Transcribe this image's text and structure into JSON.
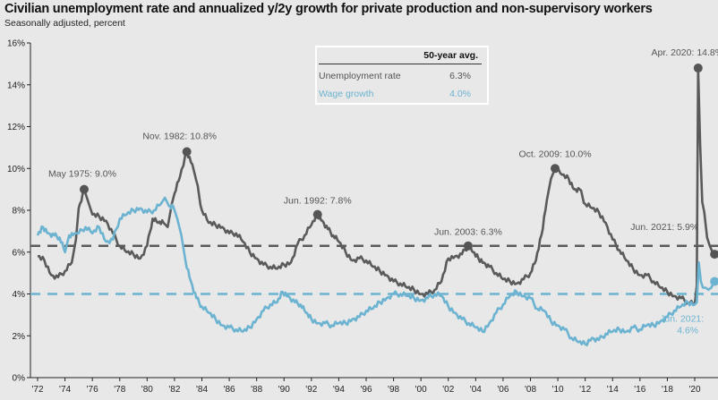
{
  "chart_data": {
    "type": "line",
    "title": "Civilian unemployment rate and annualized y/2y growth for private production and non-supervisory workers",
    "subtitle": "Seasonally adjusted, percent",
    "xlabel": "",
    "ylabel": "",
    "xlim": [
      1972,
      2021.5
    ],
    "ylim": [
      0,
      16
    ],
    "y_ticks": [
      0,
      2,
      4,
      6,
      8,
      10,
      12,
      14,
      16
    ],
    "y_tick_labels": [
      "0%",
      "2%",
      "4%",
      "6%",
      "8%",
      "10%",
      "12%",
      "14%",
      "16%"
    ],
    "x_ticks": [
      1972,
      1974,
      1976,
      1978,
      1980,
      1982,
      1984,
      1986,
      1988,
      1990,
      1992,
      1994,
      1996,
      1998,
      2000,
      2002,
      2004,
      2006,
      2008,
      2010,
      2012,
      2014,
      2016,
      2018,
      2020
    ],
    "x_tick_labels": [
      "'72",
      "'74",
      "'76",
      "'78",
      "'80",
      "'82",
      "'84",
      "'86",
      "'88",
      "'90",
      "'92",
      "'94",
      "'96",
      "'98",
      "'00",
      "'02",
      "'04",
      "'06",
      "'08",
      "'10",
      "'12",
      "'14",
      "'16",
      "'18",
      "'20"
    ],
    "grid": false,
    "series": [
      {
        "name": "Unemployment rate",
        "color": "#5a5a5a",
        "points": [
          [
            1972.0,
            5.8
          ],
          [
            1972.5,
            5.6
          ],
          [
            1973.0,
            4.9
          ],
          [
            1973.5,
            4.8
          ],
          [
            1974.0,
            5.1
          ],
          [
            1974.5,
            5.5
          ],
          [
            1974.8,
            6.6
          ],
          [
            1975.0,
            8.1
          ],
          [
            1975.4,
            9.0
          ],
          [
            1975.7,
            8.4
          ],
          [
            1976.0,
            7.8
          ],
          [
            1976.5,
            7.7
          ],
          [
            1977.0,
            7.5
          ],
          [
            1977.5,
            6.9
          ],
          [
            1978.0,
            6.3
          ],
          [
            1978.5,
            6.0
          ],
          [
            1979.0,
            5.9
          ],
          [
            1979.5,
            5.7
          ],
          [
            1980.0,
            6.3
          ],
          [
            1980.4,
            7.6
          ],
          [
            1980.8,
            7.4
          ],
          [
            1981.2,
            7.4
          ],
          [
            1981.5,
            7.2
          ],
          [
            1981.8,
            8.3
          ],
          [
            1982.0,
            8.8
          ],
          [
            1982.4,
            9.6
          ],
          [
            1982.9,
            10.8
          ],
          [
            1983.3,
            10.2
          ],
          [
            1983.6,
            9.4
          ],
          [
            1984.0,
            8.0
          ],
          [
            1984.5,
            7.4
          ],
          [
            1985.0,
            7.3
          ],
          [
            1985.5,
            7.2
          ],
          [
            1986.0,
            6.9
          ],
          [
            1986.5,
            6.9
          ],
          [
            1987.0,
            6.5
          ],
          [
            1987.5,
            6.0
          ],
          [
            1988.0,
            5.7
          ],
          [
            1988.5,
            5.4
          ],
          [
            1989.0,
            5.3
          ],
          [
            1989.5,
            5.2
          ],
          [
            1990.0,
            5.4
          ],
          [
            1990.5,
            5.5
          ],
          [
            1991.0,
            6.4
          ],
          [
            1991.5,
            6.8
          ],
          [
            1992.0,
            7.3
          ],
          [
            1992.45,
            7.8
          ],
          [
            1992.8,
            7.5
          ],
          [
            1993.2,
            7.1
          ],
          [
            1993.6,
            6.8
          ],
          [
            1994.0,
            6.5
          ],
          [
            1994.5,
            6.0
          ],
          [
            1995.0,
            5.6
          ],
          [
            1995.5,
            5.7
          ],
          [
            1996.0,
            5.6
          ],
          [
            1996.5,
            5.3
          ],
          [
            1997.0,
            5.1
          ],
          [
            1997.5,
            4.9
          ],
          [
            1998.0,
            4.6
          ],
          [
            1998.5,
            4.5
          ],
          [
            1999.0,
            4.3
          ],
          [
            1999.5,
            4.2
          ],
          [
            2000.0,
            4.0
          ],
          [
            2000.5,
            4.0
          ],
          [
            2001.0,
            4.2
          ],
          [
            2001.5,
            4.6
          ],
          [
            2002.0,
            5.7
          ],
          [
            2002.5,
            5.8
          ],
          [
            2003.0,
            5.9
          ],
          [
            2003.45,
            6.3
          ],
          [
            2003.8,
            6.0
          ],
          [
            2004.2,
            5.7
          ],
          [
            2004.6,
            5.5
          ],
          [
            2005.0,
            5.3
          ],
          [
            2005.5,
            5.0
          ],
          [
            2006.0,
            4.7
          ],
          [
            2006.5,
            4.6
          ],
          [
            2007.0,
            4.5
          ],
          [
            2007.5,
            4.7
          ],
          [
            2008.0,
            5.0
          ],
          [
            2008.4,
            5.6
          ],
          [
            2008.8,
            6.8
          ],
          [
            2009.2,
            8.5
          ],
          [
            2009.5,
            9.5
          ],
          [
            2009.8,
            10.0
          ],
          [
            2010.3,
            9.7
          ],
          [
            2010.8,
            9.5
          ],
          [
            2011.2,
            9.0
          ],
          [
            2011.6,
            9.0
          ],
          [
            2012.0,
            8.3
          ],
          [
            2012.5,
            8.1
          ],
          [
            2013.0,
            7.9
          ],
          [
            2013.5,
            7.4
          ],
          [
            2014.0,
            6.6
          ],
          [
            2014.5,
            6.1
          ],
          [
            2015.0,
            5.6
          ],
          [
            2015.5,
            5.2
          ],
          [
            2016.0,
            4.9
          ],
          [
            2016.5,
            4.9
          ],
          [
            2017.0,
            4.6
          ],
          [
            2017.5,
            4.3
          ],
          [
            2018.0,
            4.1
          ],
          [
            2018.5,
            3.9
          ],
          [
            2019.0,
            3.8
          ],
          [
            2019.5,
            3.6
          ],
          [
            2020.0,
            3.5
          ],
          [
            2020.15,
            4.4
          ],
          [
            2020.25,
            14.8
          ],
          [
            2020.4,
            11.1
          ],
          [
            2020.55,
            8.4
          ],
          [
            2020.7,
            7.9
          ],
          [
            2020.9,
            6.7
          ],
          [
            2021.1,
            6.3
          ],
          [
            2021.3,
            6.0
          ],
          [
            2021.45,
            5.9
          ]
        ]
      },
      {
        "name": "Wage growth",
        "color": "#6bb3d0",
        "points": [
          [
            1972.0,
            6.8
          ],
          [
            1972.4,
            7.2
          ],
          [
            1972.8,
            6.9
          ],
          [
            1973.2,
            6.8
          ],
          [
            1973.6,
            6.7
          ],
          [
            1974.0,
            6.0
          ],
          [
            1974.3,
            6.8
          ],
          [
            1974.7,
            6.9
          ],
          [
            1975.0,
            6.9
          ],
          [
            1975.5,
            7.2
          ],
          [
            1976.0,
            6.9
          ],
          [
            1976.5,
            7.2
          ],
          [
            1977.0,
            6.5
          ],
          [
            1977.5,
            6.6
          ],
          [
            1978.0,
            7.6
          ],
          [
            1978.5,
            7.8
          ],
          [
            1979.0,
            8.0
          ],
          [
            1979.5,
            8.1
          ],
          [
            1980.0,
            7.9
          ],
          [
            1980.5,
            8.0
          ],
          [
            1981.0,
            8.3
          ],
          [
            1981.3,
            8.6
          ],
          [
            1981.6,
            8.2
          ],
          [
            1981.9,
            8.2
          ],
          [
            1982.2,
            7.6
          ],
          [
            1982.5,
            6.8
          ],
          [
            1982.8,
            5.6
          ],
          [
            1983.2,
            4.6
          ],
          [
            1983.6,
            3.8
          ],
          [
            1984.0,
            3.4
          ],
          [
            1984.5,
            3.1
          ],
          [
            1985.0,
            2.8
          ],
          [
            1985.5,
            2.5
          ],
          [
            1986.0,
            2.4
          ],
          [
            1986.5,
            2.3
          ],
          [
            1987.0,
            2.2
          ],
          [
            1987.5,
            2.4
          ],
          [
            1988.0,
            2.8
          ],
          [
            1988.5,
            3.2
          ],
          [
            1989.0,
            3.5
          ],
          [
            1989.5,
            3.6
          ],
          [
            1989.9,
            4.1
          ],
          [
            1990.3,
            3.9
          ],
          [
            1990.8,
            3.6
          ],
          [
            1991.2,
            3.5
          ],
          [
            1991.6,
            3.1
          ],
          [
            1992.0,
            2.8
          ],
          [
            1992.5,
            2.6
          ],
          [
            1993.0,
            2.6
          ],
          [
            1993.5,
            2.5
          ],
          [
            1994.0,
            2.6
          ],
          [
            1994.5,
            2.6
          ],
          [
            1995.0,
            2.8
          ],
          [
            1995.5,
            2.9
          ],
          [
            1996.0,
            3.2
          ],
          [
            1996.5,
            3.3
          ],
          [
            1997.0,
            3.6
          ],
          [
            1997.5,
            3.8
          ],
          [
            1998.0,
            4.0
          ],
          [
            1998.5,
            4.0
          ],
          [
            1999.0,
            3.9
          ],
          [
            1999.5,
            3.8
          ],
          [
            2000.0,
            3.7
          ],
          [
            2000.5,
            3.8
          ],
          [
            2001.0,
            4.0
          ],
          [
            2001.5,
            3.9
          ],
          [
            2002.0,
            3.4
          ],
          [
            2002.5,
            3.1
          ],
          [
            2003.0,
            2.8
          ],
          [
            2003.5,
            2.6
          ],
          [
            2004.0,
            2.4
          ],
          [
            2004.5,
            2.2
          ],
          [
            2005.0,
            2.6
          ],
          [
            2005.5,
            3.1
          ],
          [
            2006.0,
            3.5
          ],
          [
            2006.5,
            3.9
          ],
          [
            2007.0,
            4.1
          ],
          [
            2007.5,
            3.9
          ],
          [
            2008.0,
            3.8
          ],
          [
            2008.5,
            3.3
          ],
          [
            2009.0,
            3.2
          ],
          [
            2009.5,
            2.7
          ],
          [
            2010.0,
            2.5
          ],
          [
            2010.5,
            2.3
          ],
          [
            2011.0,
            1.9
          ],
          [
            2011.5,
            1.7
          ],
          [
            2012.0,
            1.6
          ],
          [
            2012.5,
            1.9
          ],
          [
            2013.0,
            1.8
          ],
          [
            2013.5,
            2.1
          ],
          [
            2014.0,
            2.2
          ],
          [
            2014.5,
            2.3
          ],
          [
            2015.0,
            2.2
          ],
          [
            2015.5,
            2.4
          ],
          [
            2016.0,
            2.3
          ],
          [
            2016.5,
            2.5
          ],
          [
            2017.0,
            2.5
          ],
          [
            2017.5,
            2.7
          ],
          [
            2018.0,
            2.9
          ],
          [
            2018.5,
            3.2
          ],
          [
            2019.0,
            3.4
          ],
          [
            2019.5,
            3.6
          ],
          [
            2020.0,
            3.5
          ],
          [
            2020.15,
            3.6
          ],
          [
            2020.3,
            5.5
          ],
          [
            2020.45,
            4.6
          ],
          [
            2020.6,
            4.3
          ],
          [
            2020.8,
            4.3
          ],
          [
            2021.0,
            4.2
          ],
          [
            2021.2,
            4.3
          ],
          [
            2021.45,
            4.6
          ]
        ]
      }
    ],
    "reference_lines": [
      {
        "name": "Unemployment 50-year avg",
        "value": 6.3,
        "color": "#5a5a5a",
        "style": "dashed"
      },
      {
        "name": "Wage growth 50-year avg",
        "value": 4.0,
        "color": "#6bb3d0",
        "style": "dashed"
      }
    ],
    "annotations": [
      {
        "label": "May 1975: 9.0%",
        "x": 1975.4,
        "y": 9.0,
        "series": "Unemployment rate",
        "color": "#555555"
      },
      {
        "label": "Nov. 1982: 10.8%",
        "x": 1982.9,
        "y": 10.8,
        "series": "Unemployment rate",
        "color": "#555555"
      },
      {
        "label": "Jun. 1992: 7.8%",
        "x": 1992.45,
        "y": 7.8,
        "series": "Unemployment rate",
        "color": "#555555"
      },
      {
        "label": "Jun. 2003: 6.3%",
        "x": 2003.45,
        "y": 6.3,
        "series": "Unemployment rate",
        "color": "#555555"
      },
      {
        "label": "Oct. 2009: 10.0%",
        "x": 2009.8,
        "y": 10.0,
        "series": "Unemployment rate",
        "color": "#555555"
      },
      {
        "label": "Apr. 2020: 14.8%",
        "x": 2020.25,
        "y": 14.8,
        "series": "Unemployment rate",
        "color": "#555555"
      },
      {
        "label": "Jun. 2021: 5.9%",
        "x": 2021.45,
        "y": 5.9,
        "series": "Unemployment rate",
        "color": "#555555"
      },
      {
        "label": "Jun. 2021:",
        "label2": "4.6%",
        "x": 2021.45,
        "y": 4.6,
        "series": "Wage growth",
        "color": "#6bb3d0"
      }
    ],
    "legend": {
      "placement": "top-center",
      "header": "50-year avg.",
      "rows": [
        {
          "label": "Unemployment rate",
          "value": "6.3%",
          "color": "#555555"
        },
        {
          "label": "Wage growth",
          "value": "4.0%",
          "color": "#6bb3d0"
        }
      ]
    }
  }
}
